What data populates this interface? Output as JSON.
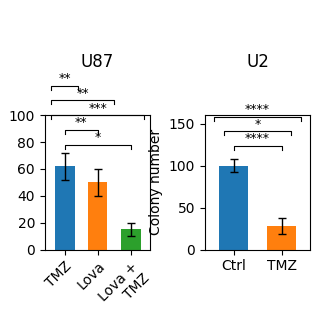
{
  "chart_data": [
    {
      "type": "bar",
      "title": "U87",
      "categories": [
        "TMZ",
        "Lova",
        "Lova +\nTMZ"
      ],
      "values": [
        62,
        50,
        15
      ],
      "errors": [
        10,
        10,
        5
      ],
      "ylim": [
        0,
        100
      ],
      "yticks": [
        0,
        20,
        40,
        60,
        80,
        100
      ],
      "annotations": [
        "*",
        "**",
        "***",
        "**",
        "**"
      ]
    },
    {
      "type": "bar",
      "title": "U2",
      "categories": [
        "Ctrl",
        "TMZ"
      ],
      "values": [
        100,
        28
      ],
      "errors": [
        8,
        10
      ],
      "y_label": "Colony number",
      "ylim": [
        0,
        160
      ],
      "yticks": [
        0,
        50,
        100,
        150
      ],
      "annotations": [
        "****",
        "*",
        "****"
      ]
    }
  ]
}
